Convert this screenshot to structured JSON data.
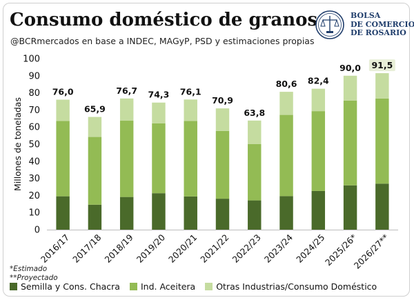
{
  "header": {
    "title": "Consumo doméstico de granos",
    "subtitle": "@BCRmercados en base a INDEC, MAGyP, PSD y estimaciones propias"
  },
  "logo": {
    "line1": "BOLSA",
    "line2": "DE COMERCIO",
    "line3": "DE ROSARIO",
    "color": "#1f3d6b"
  },
  "footnotes": {
    "estimated": "*Estimado",
    "projected": "**Proyectado"
  },
  "colors": {
    "semilla": "#4a6a2a",
    "aceitera": "#93bb54",
    "otras": "#c5dca0",
    "highlight_label_bg": "#e8efd8"
  },
  "chart_data": {
    "type": "bar",
    "stacked": true,
    "categories": [
      "2016/17",
      "2017/18",
      "2018/19",
      "2019/20",
      "2020/21",
      "2021/22",
      "2022/23",
      "2023/24",
      "2024/25",
      "2025/26*",
      "2026/27**"
    ],
    "series": [
      {
        "name": "Semilla y Cons. Chacra",
        "values": [
          19.5,
          14.6,
          19.1,
          21.3,
          19.4,
          18.1,
          17.1,
          19.6,
          22.6,
          25.9,
          26.9
        ]
      },
      {
        "name": "Ind. Aceitera",
        "values": [
          44.1,
          39.6,
          44.6,
          40.8,
          44.1,
          39.6,
          33.0,
          47.5,
          46.7,
          49.6,
          49.8
        ]
      },
      {
        "name": "Otras Industrias/Consumo Doméstico",
        "values": [
          12.4,
          11.7,
          13.0,
          12.2,
          12.6,
          13.2,
          13.7,
          13.5,
          13.1,
          14.5,
          14.8
        ]
      }
    ],
    "totals": [
      "76,0",
      "65,9",
      "76,7",
      "74,3",
      "76,1",
      "70,9",
      "63,8",
      "80,6",
      "82,4",
      "90,0",
      "91,5"
    ],
    "highlighted_total_index": 10,
    "ylabel": "Millones de toneladas",
    "xlabel": "",
    "ylim": [
      0,
      100
    ],
    "yticks": [
      0,
      10,
      20,
      30,
      40,
      50,
      60,
      70,
      80,
      90,
      100
    ],
    "grid": false,
    "legend_position": "bottom"
  }
}
